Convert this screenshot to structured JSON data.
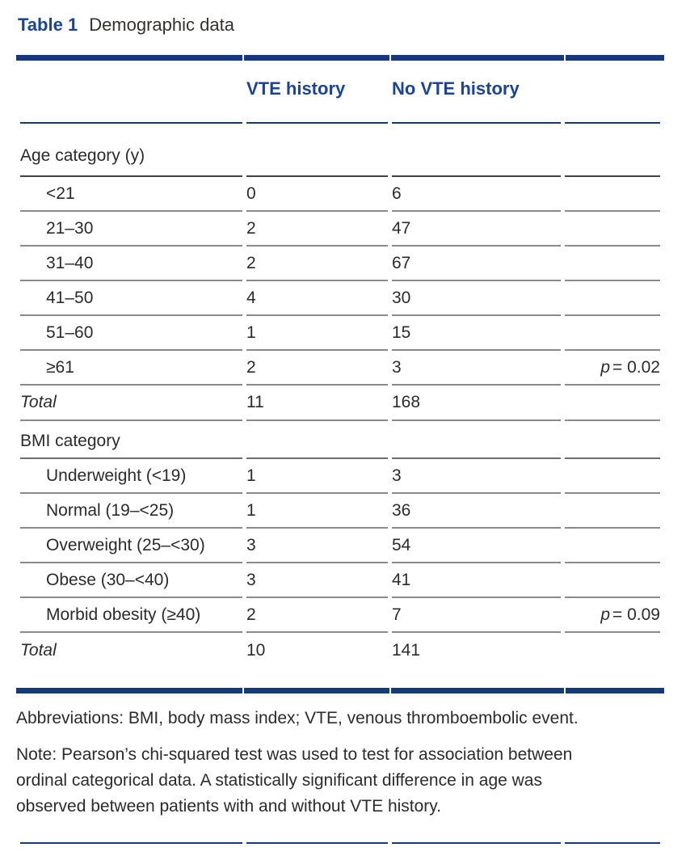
{
  "page": {
    "title_label": "Table 1",
    "title_text": "Demographic data"
  },
  "colors": {
    "rule_navy": "#14397c",
    "heading_navy": "#1c4496",
    "row_separator_gray": "#8a8a8a",
    "category_separator_dark": "#424242",
    "body_text": "#2b2b2b"
  },
  "table": {
    "col_headers": {
      "vte": "VTE history",
      "no_vte": "No VTE history"
    },
    "rows": [
      {
        "type": "category",
        "label": "Age category (y)"
      },
      {
        "type": "data",
        "label": "<21",
        "vte": "0",
        "no_vte": "6"
      },
      {
        "type": "data",
        "label": "21–30",
        "vte": "2",
        "no_vte": "47"
      },
      {
        "type": "data",
        "label": "31–40",
        "vte": "2",
        "no_vte": "67"
      },
      {
        "type": "data",
        "label": "41–50",
        "vte": "4",
        "no_vte": "30"
      },
      {
        "type": "data",
        "label": "51–60",
        "vte": "1",
        "no_vte": "15"
      },
      {
        "type": "data",
        "label": "≥61",
        "vte": "2",
        "no_vte": "3",
        "p_symbol": "p",
        "p_value": "= 0.02"
      },
      {
        "type": "total",
        "label": "Total",
        "vte": "11",
        "no_vte": "168"
      },
      {
        "type": "category",
        "label": "BMI category"
      },
      {
        "type": "data",
        "label": "Underweight (<19)",
        "vte": "1",
        "no_vte": "3"
      },
      {
        "type": "data",
        "label": "Normal (19–<25)",
        "vte": "1",
        "no_vte": "36"
      },
      {
        "type": "data",
        "label": "Overweight (25–<30)",
        "vte": "3",
        "no_vte": "54"
      },
      {
        "type": "data",
        "label": "Obese (30–<40)",
        "vte": "3",
        "no_vte": "41"
      },
      {
        "type": "data",
        "label": "Morbid obesity (≥40)",
        "vte": "2",
        "no_vte": "7",
        "p_symbol": "p",
        "p_value": "= 0.09"
      },
      {
        "type": "total",
        "label": "Total",
        "vte": "10",
        "no_vte": "141"
      }
    ]
  },
  "footer": {
    "abbreviations": "Abbreviations: BMI, body mass index; VTE, venous thromboembolic event.",
    "note_lines": [
      "Note: Pearson’s chi-squared test was used to test for association between",
      "ordinal categorical data. A statistically significant difference in age was",
      "observed between patients with and without VTE history."
    ]
  }
}
